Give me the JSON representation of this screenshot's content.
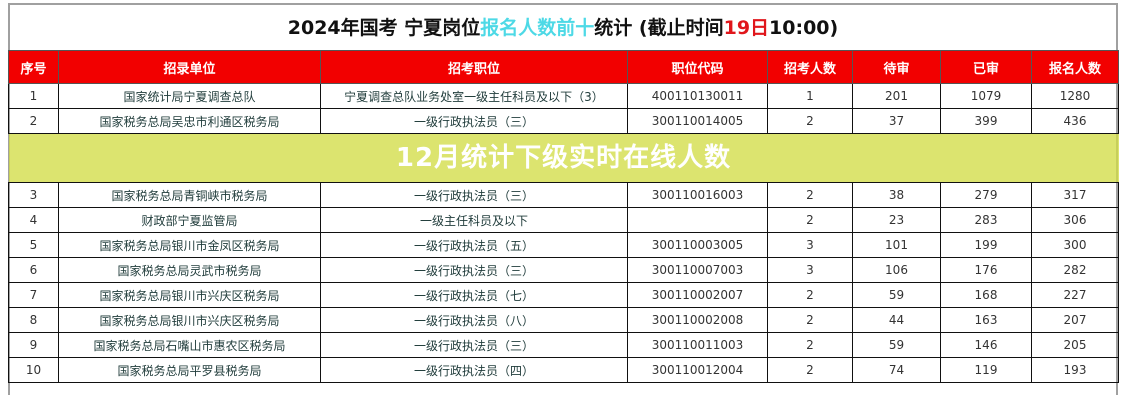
{
  "title": {
    "part1": "2024年国考  宁夏岗位",
    "highlight": "报名人数前十",
    "part2": "统计    (截止时间",
    "date": "19日",
    "time": "10:00)"
  },
  "colors": {
    "header_bg": "#f20000",
    "highlight": "#4dd9e6",
    "date": "#e0161b",
    "banner": "#d2dc46"
  },
  "banner": "12月统计下级实时在线人数",
  "headers": [
    "序号",
    "招录单位",
    "招考职位",
    "职位代码",
    "招考人数",
    "待审",
    "已审",
    "报名人数"
  ],
  "rows": [
    [
      "1",
      "国家统计局宁夏调查总队",
      "宁夏调查总队业务处室一级主任科员及以下（3）",
      "400110130011",
      "1",
      "201",
      "1079",
      "1280"
    ],
    [
      "2",
      "国家税务总局吴忠市利通区税务局",
      "一级行政执法员（三）",
      "300110014005",
      "2",
      "37",
      "399",
      "436"
    ],
    [
      "3",
      "国家税务总局青铜峡市税务局",
      "一级行政执法员（三）",
      "300110016003",
      "2",
      "38",
      "279",
      "317"
    ],
    [
      "4",
      "财政部宁夏监管局",
      "一级主任科员及以下",
      "",
      "2",
      "23",
      "283",
      "306"
    ],
    [
      "5",
      "国家税务总局银川市金凤区税务局",
      "一级行政执法员（五）",
      "300110003005",
      "3",
      "101",
      "199",
      "300"
    ],
    [
      "6",
      "国家税务总局灵武市税务局",
      "一级行政执法员（三）",
      "300110007003",
      "3",
      "106",
      "176",
      "282"
    ],
    [
      "7",
      "国家税务总局银川市兴庆区税务局",
      "一级行政执法员（七）",
      "300110002007",
      "2",
      "59",
      "168",
      "227"
    ],
    [
      "8",
      "国家税务总局银川市兴庆区税务局",
      "一级行政执法员（八）",
      "300110002008",
      "2",
      "44",
      "163",
      "207"
    ],
    [
      "9",
      "国家税务总局石嘴山市惠农区税务局",
      "一级行政执法员（三）",
      "300110011003",
      "2",
      "59",
      "146",
      "205"
    ],
    [
      "10",
      "国家税务总局平罗县税务局",
      "一级行政执法员（四）",
      "300110012004",
      "2",
      "74",
      "119",
      "193"
    ]
  ]
}
